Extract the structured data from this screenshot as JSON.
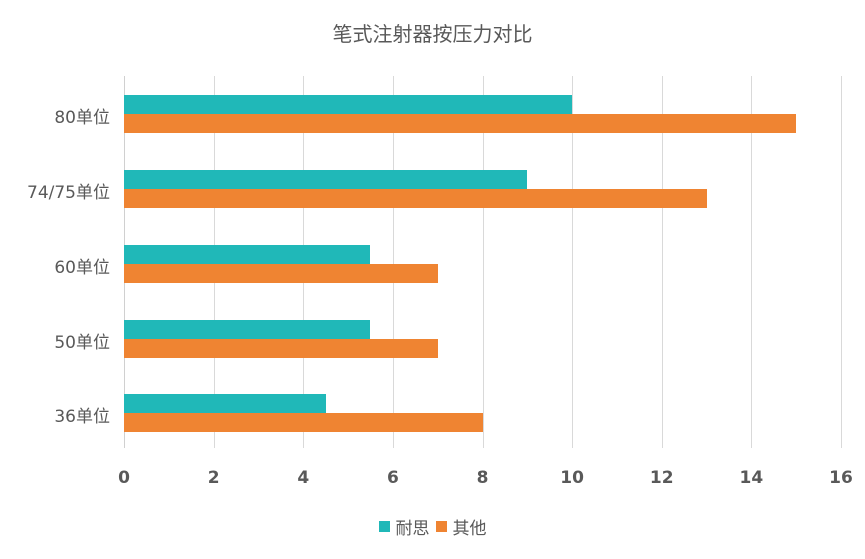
{
  "chart_data": {
    "type": "bar",
    "orientation": "horizontal",
    "title": "笔式注射器按压力对比",
    "xlabel": "",
    "ylabel": "",
    "categories": [
      "80单位",
      "74/75单位",
      "60单位",
      "50单位",
      "36单位"
    ],
    "series": [
      {
        "name": "耐思",
        "color": "#20b8b8",
        "values": [
          10,
          9,
          5.5,
          5.5,
          4.5
        ]
      },
      {
        "name": "其他",
        "color": "#ef8432",
        "values": [
          15,
          13,
          7,
          7,
          8
        ]
      }
    ],
    "xlim": [
      0,
      16
    ],
    "xticks": [
      "0",
      "2",
      "4",
      "6",
      "8",
      "10",
      "12",
      "14",
      "16"
    ],
    "grid": "vertical",
    "legend_position": "bottom"
  }
}
